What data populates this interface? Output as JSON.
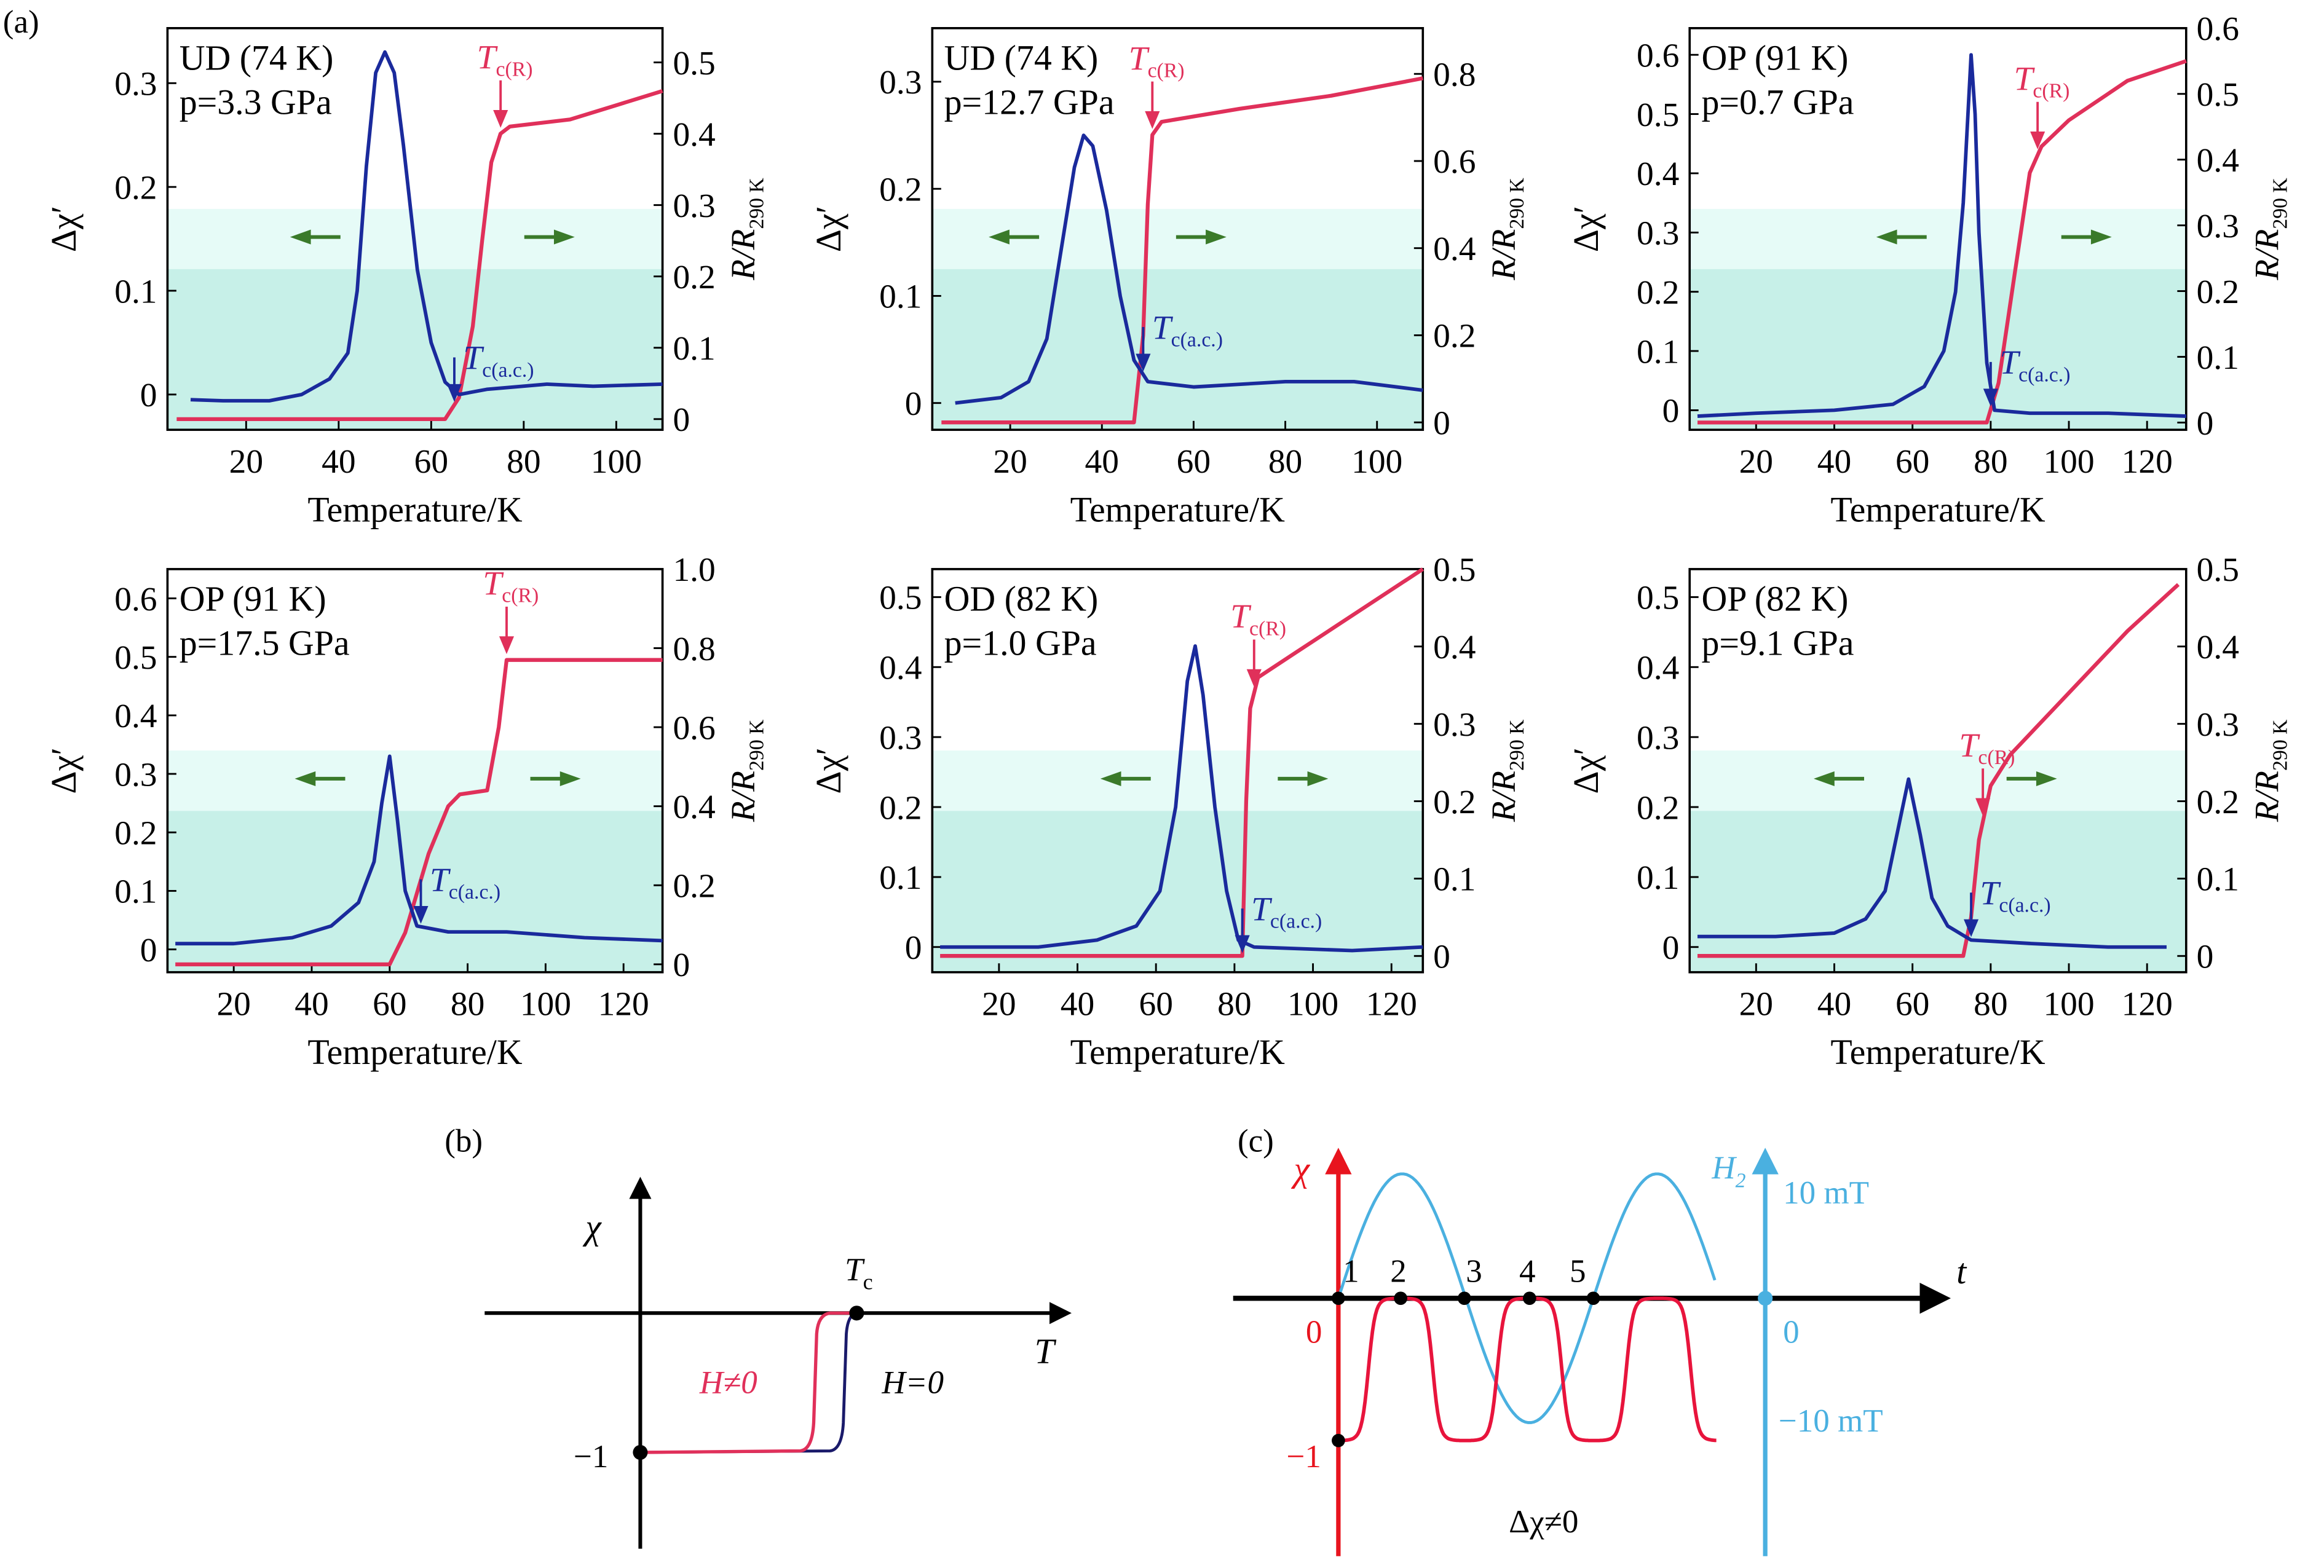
{
  "panel_labels": {
    "a": "(a)",
    "b": "(b)",
    "c": "(c)"
  },
  "colors": {
    "blue": "#1a2a9c",
    "red": "#e0305a",
    "green": "#3a7a2a",
    "teal": "#bfeee3",
    "cyan": "#4ab0e0",
    "axis_red": "#e8141e"
  },
  "common": {
    "xlabel": "Temperature/K",
    "ylabel_left": "Δχ′",
    "ylabel_right_main": "R/R",
    "ylabel_right_sub": "290 K",
    "tc_r": {
      "main": "T",
      "sub": "c(R)"
    },
    "tc_ac": {
      "main": "T",
      "sub": "c(a.c.)"
    }
  },
  "chart_data": [
    {
      "type": "line",
      "title": "UD (74 K)",
      "subtitle": "p=3.3 GPa",
      "xlim": [
        3,
        110
      ],
      "xticks": [
        "20",
        "40",
        "60",
        "80",
        "100"
      ],
      "ylim_left": [
        -0.034,
        0.353
      ],
      "yticks_left": [
        "0",
        "0.1",
        "0.2",
        "0.3"
      ],
      "ylim_right": [
        -0.015,
        0.548
      ],
      "yticks_right": [
        "0",
        "0.1",
        "0.2",
        "0.3",
        "0.4",
        "0.5"
      ],
      "tc_r": 75,
      "tc_ac": 65,
      "series": [
        {
          "name": "Δχ′",
          "axis": "left",
          "points": [
            [
              8,
              -0.005
            ],
            [
              15,
              -0.006
            ],
            [
              25,
              -0.006
            ],
            [
              32,
              0.0
            ],
            [
              38,
              0.015
            ],
            [
              42,
              0.04
            ],
            [
              44,
              0.1
            ],
            [
              46,
              0.22
            ],
            [
              48,
              0.31
            ],
            [
              50,
              0.33
            ],
            [
              52,
              0.31
            ],
            [
              54,
              0.24
            ],
            [
              57,
              0.12
            ],
            [
              60,
              0.05
            ],
            [
              63,
              0.012
            ],
            [
              66,
              0.0
            ],
            [
              72,
              0.005
            ],
            [
              85,
              0.01
            ],
            [
              95,
              0.008
            ],
            [
              110,
              0.01
            ]
          ]
        },
        {
          "name": "R/R290K",
          "axis": "right",
          "points": [
            [
              5,
              0
            ],
            [
              63,
              0
            ],
            [
              66,
              0.03
            ],
            [
              69,
              0.13
            ],
            [
              71,
              0.25
            ],
            [
              73,
              0.36
            ],
            [
              75,
              0.4
            ],
            [
              77,
              0.41
            ],
            [
              90,
              0.42
            ],
            [
              100,
              0.44
            ],
            [
              110,
              0.46
            ]
          ]
        }
      ]
    },
    {
      "type": "line",
      "title": "UD (74 K)",
      "subtitle": "p=12.7 GPa",
      "xlim": [
        3,
        110
      ],
      "xticks": [
        "20",
        "40",
        "60",
        "80",
        "100"
      ],
      "ylim_left": [
        -0.025,
        0.35
      ],
      "yticks_left": [
        "0",
        "0.1",
        "0.2",
        "0.3"
      ],
      "ylim_right": [
        -0.017,
        0.905
      ],
      "yticks_right": [
        "0",
        "0.2",
        "0.4",
        "0.6",
        "0.8"
      ],
      "tc_r": 51,
      "tc_ac": 49,
      "series": [
        {
          "name": "Δχ′",
          "axis": "left",
          "points": [
            [
              8,
              0.0
            ],
            [
              18,
              0.005
            ],
            [
              24,
              0.02
            ],
            [
              28,
              0.06
            ],
            [
              31,
              0.14
            ],
            [
              34,
              0.22
            ],
            [
              36,
              0.25
            ],
            [
              38,
              0.24
            ],
            [
              41,
              0.18
            ],
            [
              44,
              0.1
            ],
            [
              47,
              0.04
            ],
            [
              50,
              0.02
            ],
            [
              60,
              0.015
            ],
            [
              80,
              0.02
            ],
            [
              95,
              0.02
            ],
            [
              110,
              0.012
            ]
          ]
        },
        {
          "name": "R/R290K",
          "axis": "right",
          "points": [
            [
              5,
              0
            ],
            [
              47,
              0
            ],
            [
              49,
              0.2
            ],
            [
              50,
              0.5
            ],
            [
              51,
              0.66
            ],
            [
              53,
              0.69
            ],
            [
              70,
              0.72
            ],
            [
              90,
              0.75
            ],
            [
              110,
              0.79
            ]
          ]
        }
      ]
    },
    {
      "type": "line",
      "title": "OP (91 K)",
      "subtitle": "p=0.7 GPa",
      "xlim": [
        3,
        130
      ],
      "xticks": [
        "20",
        "40",
        "60",
        "80",
        "100",
        "120"
      ],
      "ylim_left": [
        -0.033,
        0.645
      ],
      "yticks_left": [
        "0",
        "0.1",
        "0.2",
        "0.3",
        "0.4",
        "0.5",
        "0.6"
      ],
      "ylim_right": [
        -0.011,
        0.6
      ],
      "yticks_right": [
        "0",
        "0.1",
        "0.2",
        "0.3",
        "0.4",
        "0.5",
        "0.6"
      ],
      "tc_r": 92,
      "tc_ac": 80,
      "series": [
        {
          "name": "Δχ′",
          "axis": "left",
          "points": [
            [
              5,
              -0.01
            ],
            [
              20,
              -0.005
            ],
            [
              40,
              0.0
            ],
            [
              55,
              0.01
            ],
            [
              63,
              0.04
            ],
            [
              68,
              0.1
            ],
            [
              71,
              0.2
            ],
            [
              73,
              0.35
            ],
            [
              75,
              0.6
            ],
            [
              76,
              0.5
            ],
            [
              77,
              0.3
            ],
            [
              79,
              0.08
            ],
            [
              81,
              0.0
            ],
            [
              90,
              -0.005
            ],
            [
              110,
              -0.005
            ],
            [
              130,
              -0.01
            ]
          ]
        },
        {
          "name": "R/R290K",
          "axis": "right",
          "points": [
            [
              5,
              0
            ],
            [
              79,
              0
            ],
            [
              82,
              0.06
            ],
            [
              86,
              0.22
            ],
            [
              90,
              0.38
            ],
            [
              93,
              0.42
            ],
            [
              100,
              0.46
            ],
            [
              115,
              0.52
            ],
            [
              130,
              0.55
            ]
          ]
        }
      ]
    },
    {
      "type": "line",
      "title": "OP (91 K)",
      "subtitle": "p=17.5 GPa",
      "xlim": [
        3,
        130
      ],
      "xticks": [
        "20",
        "40",
        "60",
        "80",
        "100",
        "120"
      ],
      "ylim_left": [
        -0.039,
        0.65
      ],
      "yticks_left": [
        "0",
        "0.1",
        "0.2",
        "0.3",
        "0.4",
        "0.5",
        "0.6"
      ],
      "ylim_right": [
        -0.02,
        1.0
      ],
      "yticks_right": [
        "0",
        "0.2",
        "0.4",
        "0.6",
        "0.8",
        "1.0"
      ],
      "tc_r": 90,
      "tc_ac": 68,
      "series": [
        {
          "name": "Δχ′",
          "axis": "left",
          "points": [
            [
              5,
              0.01
            ],
            [
              20,
              0.01
            ],
            [
              35,
              0.02
            ],
            [
              45,
              0.04
            ],
            [
              52,
              0.08
            ],
            [
              56,
              0.15
            ],
            [
              58,
              0.25
            ],
            [
              60,
              0.33
            ],
            [
              62,
              0.22
            ],
            [
              64,
              0.1
            ],
            [
              67,
              0.04
            ],
            [
              75,
              0.03
            ],
            [
              90,
              0.03
            ],
            [
              110,
              0.02
            ],
            [
              130,
              0.015
            ]
          ]
        },
        {
          "name": "R/R290K",
          "axis": "right",
          "points": [
            [
              5,
              0
            ],
            [
              60,
              0
            ],
            [
              64,
              0.08
            ],
            [
              70,
              0.28
            ],
            [
              75,
              0.4
            ],
            [
              78,
              0.43
            ],
            [
              85,
              0.44
            ],
            [
              88,
              0.6
            ],
            [
              90,
              0.77
            ],
            [
              100,
              0.77
            ],
            [
              130,
              0.77
            ]
          ]
        }
      ]
    },
    {
      "type": "line",
      "title": "OD (82 K)",
      "subtitle": "p=1.0 GPa",
      "xlim": [
        3,
        128
      ],
      "xticks": [
        "20",
        "40",
        "60",
        "80",
        "100",
        "120"
      ],
      "ylim_left": [
        -0.036,
        0.54
      ],
      "yticks_left": [
        "0",
        "0.1",
        "0.2",
        "0.3",
        "0.4",
        "0.5"
      ],
      "ylim_right": [
        -0.021,
        0.5
      ],
      "yticks_right": [
        "0",
        "0.1",
        "0.2",
        "0.3",
        "0.4",
        "0.5"
      ],
      "tc_r": 85,
      "tc_ac": 82,
      "series": [
        {
          "name": "Δχ′",
          "axis": "left",
          "points": [
            [
              5,
              0.0
            ],
            [
              30,
              0.0
            ],
            [
              45,
              0.01
            ],
            [
              55,
              0.03
            ],
            [
              61,
              0.08
            ],
            [
              65,
              0.2
            ],
            [
              68,
              0.38
            ],
            [
              70,
              0.43
            ],
            [
              72,
              0.36
            ],
            [
              75,
              0.2
            ],
            [
              78,
              0.08
            ],
            [
              81,
              0.01
            ],
            [
              85,
              0.0
            ],
            [
              110,
              -0.005
            ],
            [
              128,
              0.0
            ]
          ]
        },
        {
          "name": "R/R290K",
          "axis": "right",
          "points": [
            [
              5,
              0
            ],
            [
              82,
              0
            ],
            [
              83,
              0.2
            ],
            [
              84,
              0.32
            ],
            [
              86,
              0.36
            ],
            [
              95,
              0.39
            ],
            [
              110,
              0.44
            ],
            [
              128,
              0.5
            ]
          ]
        }
      ]
    },
    {
      "type": "line",
      "title": "OP (82 K)",
      "subtitle": "p=9.1 GPa",
      "xlim": [
        3,
        130
      ],
      "xticks": [
        "20",
        "40",
        "60",
        "80",
        "100",
        "120"
      ],
      "ylim_left": [
        -0.036,
        0.54
      ],
      "yticks_left": [
        "0",
        "0.1",
        "0.2",
        "0.3",
        "0.4",
        "0.5"
      ],
      "ylim_right": [
        -0.021,
        0.5
      ],
      "yticks_right": [
        "0",
        "0.1",
        "0.2",
        "0.3",
        "0.4",
        "0.5"
      ],
      "tc_r": 78,
      "tc_ac": 75,
      "series": [
        {
          "name": "Δχ′",
          "axis": "left",
          "points": [
            [
              5,
              0.015
            ],
            [
              25,
              0.015
            ],
            [
              40,
              0.02
            ],
            [
              48,
              0.04
            ],
            [
              53,
              0.08
            ],
            [
              56,
              0.16
            ],
            [
              59,
              0.24
            ],
            [
              62,
              0.16
            ],
            [
              65,
              0.07
            ],
            [
              69,
              0.03
            ],
            [
              75,
              0.01
            ],
            [
              90,
              0.005
            ],
            [
              110,
              0.0
            ],
            [
              125,
              0.0
            ]
          ]
        },
        {
          "name": "R/R290K",
          "axis": "right",
          "points": [
            [
              5,
              0
            ],
            [
              73,
              0
            ],
            [
              75,
              0.05
            ],
            [
              77,
              0.15
            ],
            [
              80,
              0.22
            ],
            [
              85,
              0.26
            ],
            [
              100,
              0.34
            ],
            [
              115,
              0.42
            ],
            [
              128,
              0.48
            ]
          ]
        }
      ]
    }
  ],
  "panel_b": {
    "y_axis_label": "χ",
    "x_axis_label": "T",
    "tc_main": "T",
    "tc_sub": "c",
    "minus_one": "−1",
    "h_nonzero": "H≠0",
    "h_zero": "H=0"
  },
  "panel_c": {
    "chi_label": "χ",
    "h2_main": "H",
    "h2_sub": "2",
    "t_label": "t",
    "h_max": "10 mT",
    "h_min": "−10 mT",
    "h_zero": "0",
    "chi_zero": "0",
    "chi_min": "−1",
    "points": [
      "1",
      "2",
      "3",
      "4",
      "5"
    ],
    "caption": "Δχ≠0"
  }
}
